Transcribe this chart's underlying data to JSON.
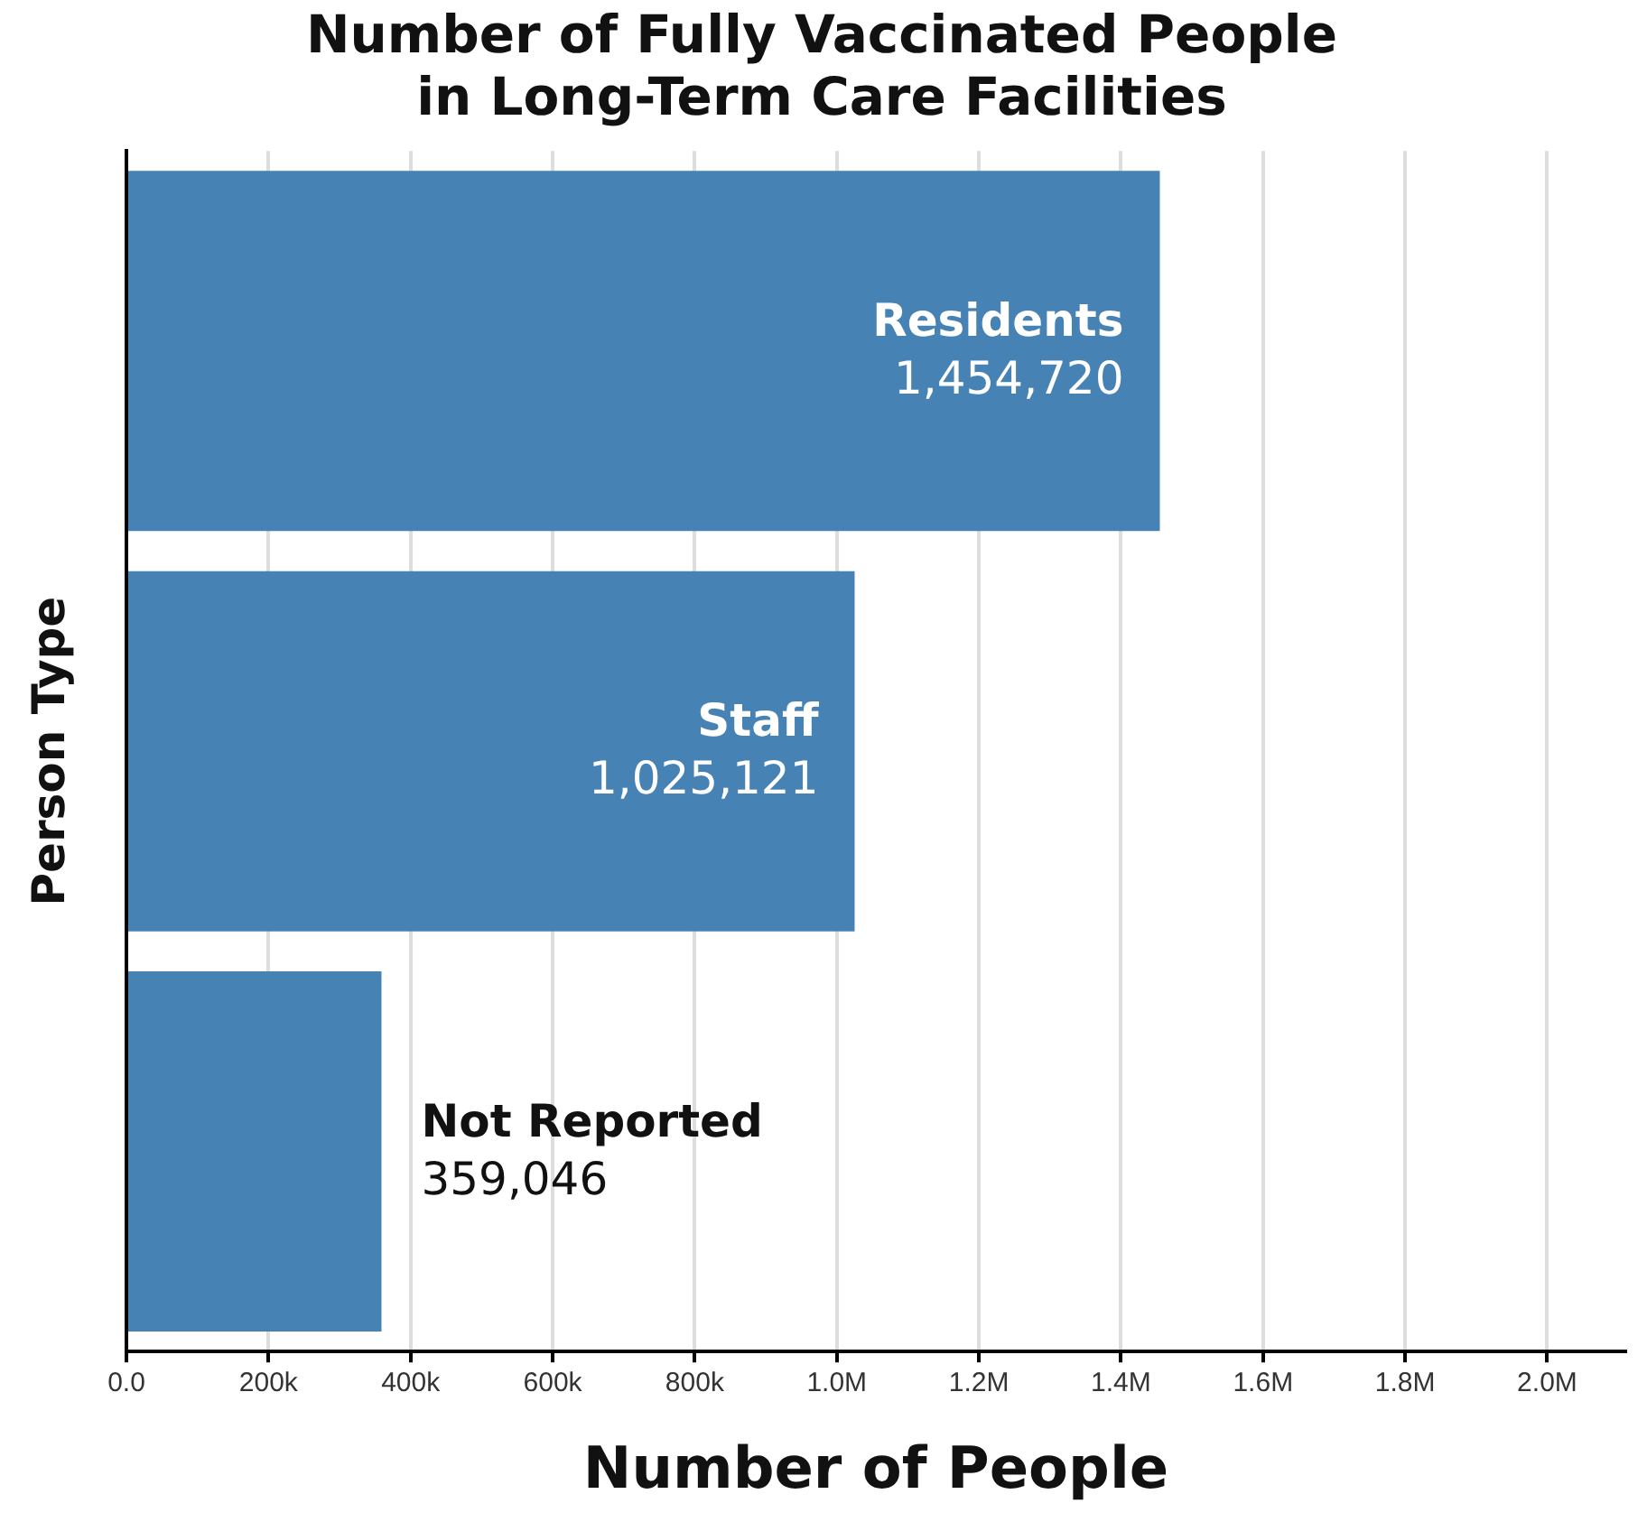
{
  "chart_data": {
    "type": "bar",
    "orientation": "horizontal",
    "title": "Number of Fully Vaccinated People in Long-Term Care Facilities",
    "xlabel": "Number of People",
    "ylabel": "Person Type",
    "categories": [
      "Residents",
      "Staff",
      "Not Reported"
    ],
    "values": [
      1454720,
      1025121,
      359046
    ],
    "value_labels": [
      "1,454,720",
      "1,025,121",
      "359,046"
    ],
    "color": "#4682b4",
    "xlim": [
      0,
      2110000
    ],
    "xticks": [
      {
        "value": 0,
        "label": "0.0"
      },
      {
        "value": 200000,
        "label": "200k"
      },
      {
        "value": 400000,
        "label": "400k"
      },
      {
        "value": 600000,
        "label": "600k"
      },
      {
        "value": 800000,
        "label": "800k"
      },
      {
        "value": 1000000,
        "label": "1.0M"
      },
      {
        "value": 1200000,
        "label": "1.2M"
      },
      {
        "value": 1400000,
        "label": "1.4M"
      },
      {
        "value": 1600000,
        "label": "1.6M"
      },
      {
        "value": 1800000,
        "label": "1.8M"
      },
      {
        "value": 2000000,
        "label": "2.0M"
      }
    ],
    "grid": "x",
    "tick_labels": "x",
    "legend": false
  }
}
